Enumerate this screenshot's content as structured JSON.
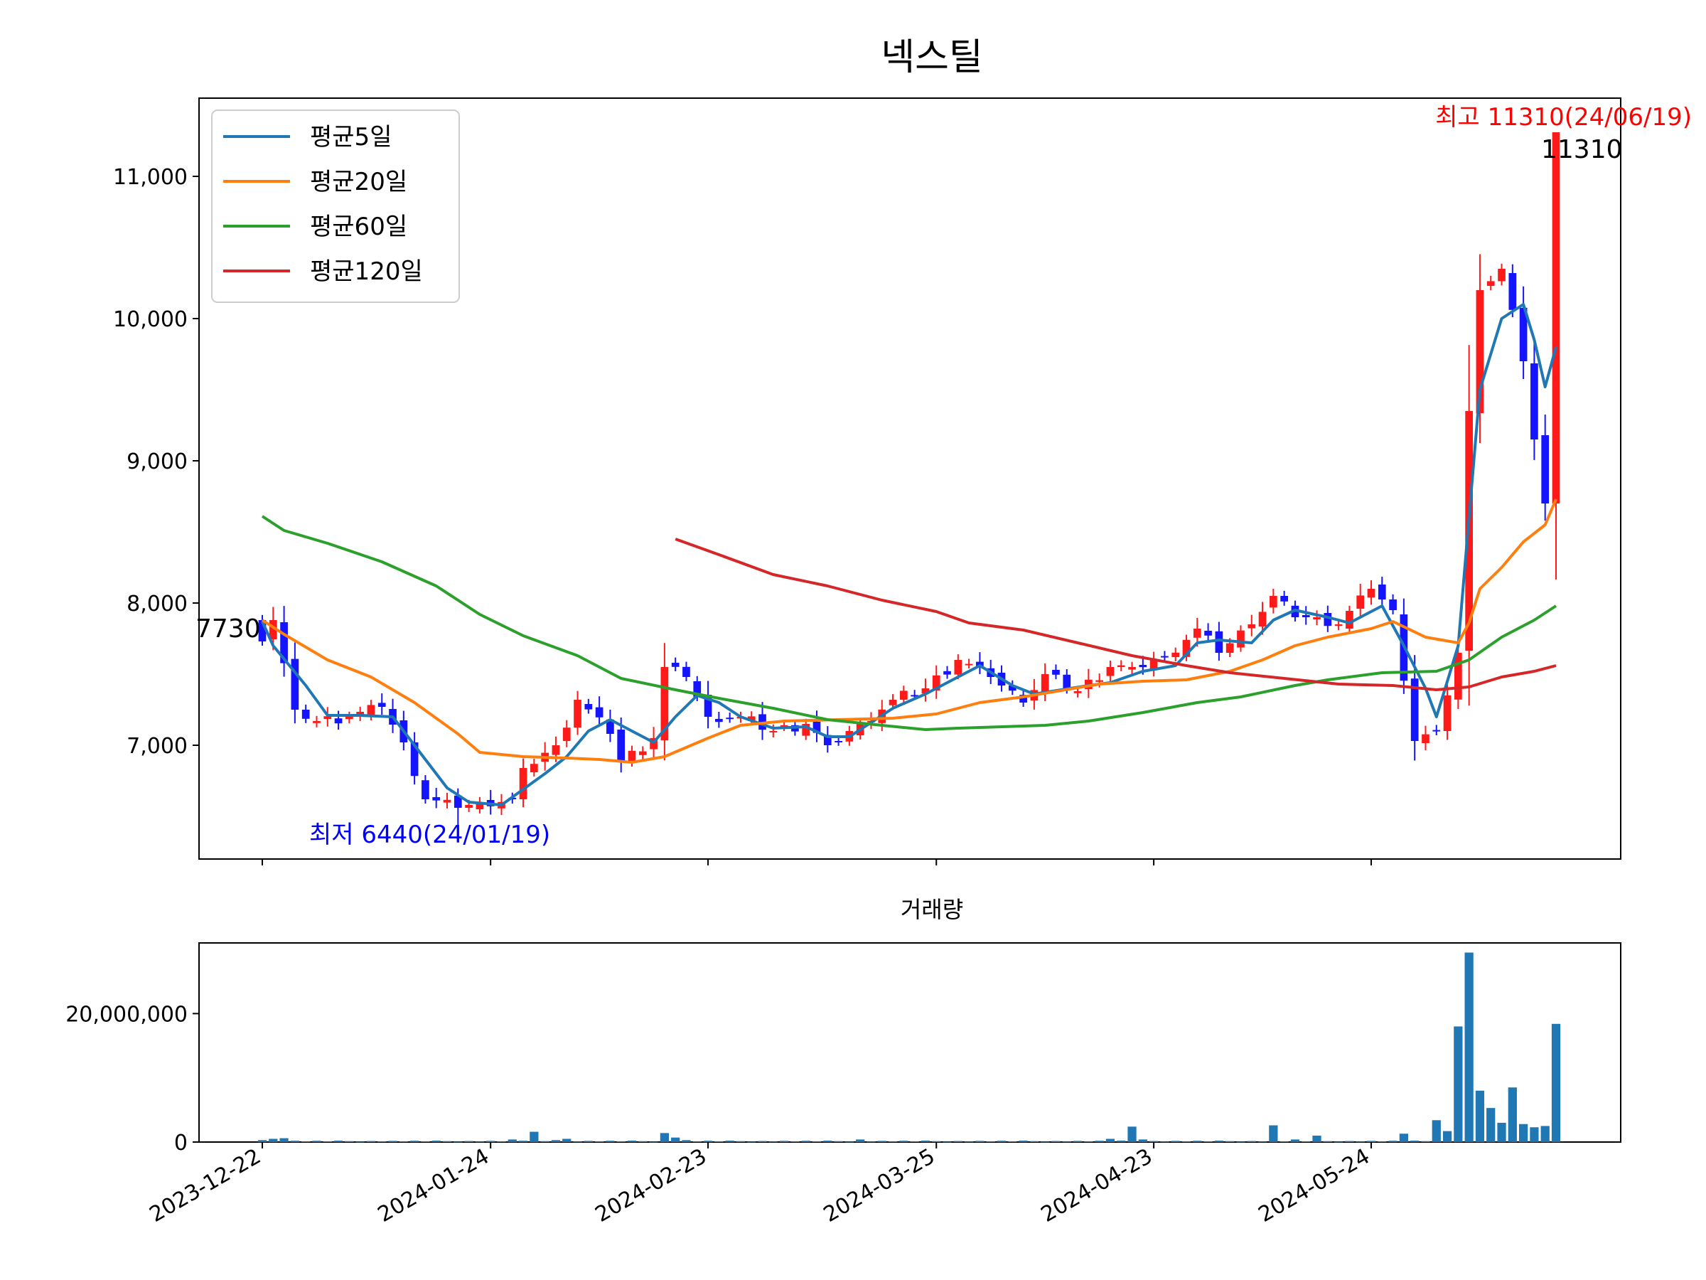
{
  "title": "넥스틸",
  "volume_title": "거래량",
  "legend": [
    "평균5일",
    "평균20일",
    "평균60일",
    "평균120일"
  ],
  "annotations": {
    "high": "최고 11310(24/06/19)",
    "low": "최저 6440(24/01/19)",
    "first_close": "7730",
    "last_close": "11310"
  },
  "colors": {
    "up": "#ff1a1a",
    "down": "#1414ff",
    "ma5": "#1f77b4",
    "ma20": "#ff7f0e",
    "ma60": "#2ca02c",
    "ma120": "#d62728",
    "volume": "#1f77b4",
    "high_text": "#ff0000",
    "low_text": "#0000ff"
  },
  "chart_data": [
    {
      "type": "candlestick",
      "title": "넥스틸",
      "x_ticks": [
        "2023-12-22",
        "2024-01-24",
        "2024-02-23",
        "2024-03-25",
        "2024-04-23",
        "2024-05-24"
      ],
      "ylim": [
        6200,
        11550
      ],
      "y_ticks": [
        7000,
        8000,
        9000,
        10000,
        11000
      ],
      "y_tick_labels": [
        "7,000",
        "8,000",
        "9,000",
        "10,000",
        "11,000"
      ],
      "grid": false,
      "legend_position": "top-left",
      "close_anchors": [
        [
          "2023-12-22",
          7730
        ],
        [
          "2023-12-26",
          7880
        ],
        [
          "2023-12-28",
          7250
        ],
        [
          "2024-01-02",
          7170
        ],
        [
          "2024-01-05",
          7200
        ],
        [
          "2024-01-10",
          7270
        ],
        [
          "2024-01-12",
          7020
        ],
        [
          "2024-01-16",
          6620
        ],
        [
          "2024-01-19",
          6560
        ],
        [
          "2024-01-23",
          6600
        ],
        [
          "2024-01-26",
          6620
        ],
        [
          "2024-01-29",
          6840
        ],
        [
          "2024-02-01",
          7000
        ],
        [
          "2024-02-05",
          7320
        ],
        [
          "2024-02-08",
          7080
        ],
        [
          "2024-02-13",
          6880
        ],
        [
          "2024-02-16",
          7050
        ],
        [
          "2024-02-19",
          7550
        ],
        [
          "2024-02-21",
          7480
        ],
        [
          "2024-02-23",
          7200
        ],
        [
          "2024-02-28",
          7200
        ],
        [
          "2024-03-04",
          7100
        ],
        [
          "2024-03-07",
          7150
        ],
        [
          "2024-03-11",
          7000
        ],
        [
          "2024-03-14",
          7150
        ],
        [
          "2024-03-19",
          7320
        ],
        [
          "2024-03-22",
          7400
        ],
        [
          "2024-03-27",
          7600
        ],
        [
          "2024-04-01",
          7480
        ],
        [
          "2024-04-04",
          7300
        ],
        [
          "2024-04-08",
          7500
        ],
        [
          "2024-04-12",
          7380
        ],
        [
          "2024-04-17",
          7550
        ],
        [
          "2024-04-19",
          7550
        ],
        [
          "2024-04-24",
          7620
        ],
        [
          "2024-04-29",
          7820
        ],
        [
          "2024-05-02",
          7650
        ],
        [
          "2024-05-08",
          7850
        ],
        [
          "2024-05-10",
          8050
        ],
        [
          "2024-05-14",
          7900
        ],
        [
          "2024-05-17",
          7900
        ],
        [
          "2024-05-21",
          7850
        ],
        [
          "2024-05-24",
          8100
        ],
        [
          "2024-05-28",
          7950
        ],
        [
          "2024-05-30",
          7030
        ],
        [
          "2024-06-03",
          7100
        ],
        [
          "2024-06-05",
          7650
        ],
        [
          "2024-06-07",
          9350
        ],
        [
          "2024-06-10",
          10200
        ],
        [
          "2024-06-12",
          10350
        ],
        [
          "2024-06-14",
          9700
        ],
        [
          "2024-06-17",
          9150
        ],
        [
          "2024-06-18",
          8700
        ],
        [
          "2024-06-19",
          11310
        ]
      ],
      "extremes": {
        "high": 11310,
        "high_date": "2024-06-19",
        "low": 6440,
        "low_date": "2024-01-19"
      },
      "first_close": 7730,
      "last_close": 11310,
      "series": [
        {
          "name": "평균5일",
          "points": [
            [
              "2023-12-22",
              7870
            ],
            [
              "2023-12-26",
              7700
            ],
            [
              "2023-12-29",
              7420
            ],
            [
              "2024-01-03",
              7210
            ],
            [
              "2024-01-08",
              7210
            ],
            [
              "2024-01-11",
              7200
            ],
            [
              "2024-01-16",
              6900
            ],
            [
              "2024-01-18",
              6700
            ],
            [
              "2024-01-22",
              6600
            ],
            [
              "2024-01-25",
              6580
            ],
            [
              "2024-01-31",
              6800
            ],
            [
              "2024-02-02",
              6920
            ],
            [
              "2024-02-06",
              7100
            ],
            [
              "2024-02-08",
              7180
            ],
            [
              "2024-02-14",
              7100
            ],
            [
              "2024-02-16",
              7020
            ],
            [
              "2024-02-20",
              7200
            ],
            [
              "2024-02-22",
              7350
            ],
            [
              "2024-02-26",
              7300
            ],
            [
              "2024-02-28",
              7200
            ],
            [
              "2024-03-04",
              7120
            ],
            [
              "2024-03-07",
              7130
            ],
            [
              "2024-03-11",
              7060
            ],
            [
              "2024-03-13",
              7060
            ],
            [
              "2024-03-19",
              7260
            ],
            [
              "2024-03-22",
              7360
            ],
            [
              "2024-03-27",
              7480
            ],
            [
              "2024-03-29",
              7560
            ],
            [
              "2024-04-03",
              7420
            ],
            [
              "2024-04-05",
              7360
            ],
            [
              "2024-04-10",
              7430
            ],
            [
              "2024-04-15",
              7420
            ],
            [
              "2024-04-17",
              7440
            ],
            [
              "2024-04-22",
              7520
            ],
            [
              "2024-04-25",
              7560
            ],
            [
              "2024-04-29",
              7720
            ],
            [
              "2024-05-02",
              7740
            ],
            [
              "2024-05-08",
              7720
            ],
            [
              "2024-05-10",
              7880
            ],
            [
              "2024-05-14",
              7950
            ],
            [
              "2024-05-20",
              7900
            ],
            [
              "2024-05-22",
              7860
            ],
            [
              "2024-05-27",
              7980
            ],
            [
              "2024-05-29",
              7700
            ],
            [
              "2024-05-31",
              7400
            ],
            [
              "2024-06-03",
              7200
            ],
            [
              "2024-06-05",
              7700
            ],
            [
              "2024-06-07",
              8600
            ],
            [
              "2024-06-10",
              9500
            ],
            [
              "2024-06-12",
              10000
            ],
            [
              "2024-06-14",
              10100
            ],
            [
              "2024-06-17",
              9850
            ],
            [
              "2024-06-18",
              9520
            ],
            [
              "2024-06-19",
              9800
            ]
          ]
        },
        {
          "name": "평균20일",
          "points": [
            [
              "2023-12-22",
              7880
            ],
            [
              "2023-12-27",
              7780
            ],
            [
              "2024-01-03",
              7600
            ],
            [
              "2024-01-09",
              7480
            ],
            [
              "2024-01-15",
              7300
            ],
            [
              "2024-01-19",
              7080
            ],
            [
              "2024-01-23",
              6950
            ],
            [
              "2024-01-29",
              6920
            ],
            [
              "2024-02-02",
              6910
            ],
            [
              "2024-02-07",
              6900
            ],
            [
              "2024-02-14",
              6880
            ],
            [
              "2024-02-19",
              6920
            ],
            [
              "2024-02-23",
              7050
            ],
            [
              "2024-02-28",
              7140
            ],
            [
              "2024-03-05",
              7170
            ],
            [
              "2024-03-12",
              7180
            ],
            [
              "2024-03-19",
              7190
            ],
            [
              "2024-03-25",
              7220
            ],
            [
              "2024-03-29",
              7300
            ],
            [
              "2024-04-04",
              7340
            ],
            [
              "2024-04-10",
              7390
            ],
            [
              "2024-04-16",
              7430
            ],
            [
              "2024-04-22",
              7450
            ],
            [
              "2024-04-26",
              7460
            ],
            [
              "2024-05-03",
              7520
            ],
            [
              "2024-05-09",
              7600
            ],
            [
              "2024-05-14",
              7700
            ],
            [
              "2024-05-20",
              7760
            ],
            [
              "2024-05-24",
              7820
            ],
            [
              "2024-05-28",
              7870
            ],
            [
              "2024-05-31",
              7760
            ],
            [
              "2024-06-05",
              7720
            ],
            [
              "2024-06-07",
              7860
            ],
            [
              "2024-06-10",
              8100
            ],
            [
              "2024-06-12",
              8250
            ],
            [
              "2024-06-14",
              8430
            ],
            [
              "2024-06-18",
              8550
            ],
            [
              "2024-06-19",
              8730
            ]
          ]
        },
        {
          "name": "평균60일",
          "points": [
            [
              "2023-12-22",
              8610
            ],
            [
              "2023-12-27",
              8510
            ],
            [
              "2024-01-03",
              8420
            ],
            [
              "2024-01-10",
              8290
            ],
            [
              "2024-01-17",
              8120
            ],
            [
              "2024-01-23",
              7920
            ],
            [
              "2024-01-29",
              7770
            ],
            [
              "2024-02-05",
              7630
            ],
            [
              "2024-02-13",
              7470
            ],
            [
              "2024-02-20",
              7390
            ],
            [
              "2024-02-26",
              7330
            ],
            [
              "2024-03-04",
              7260
            ],
            [
              "2024-03-11",
              7180
            ],
            [
              "2024-03-18",
              7140
            ],
            [
              "2024-03-22",
              7110
            ],
            [
              "2024-03-27",
              7120
            ],
            [
              "2024-04-02",
              7130
            ],
            [
              "2024-04-08",
              7140
            ],
            [
              "2024-04-15",
              7170
            ],
            [
              "2024-04-22",
              7230
            ],
            [
              "2024-04-29",
              7300
            ],
            [
              "2024-05-07",
              7340
            ],
            [
              "2024-05-14",
              7420
            ],
            [
              "2024-05-20",
              7460
            ],
            [
              "2024-05-27",
              7510
            ],
            [
              "2024-06-03",
              7520
            ],
            [
              "2024-06-07",
              7600
            ],
            [
              "2024-06-12",
              7760
            ],
            [
              "2024-06-17",
              7880
            ],
            [
              "2024-06-19",
              7980
            ]
          ]
        },
        {
          "name": "평균120일",
          "points": [
            [
              "2024-02-20",
              8450
            ],
            [
              "2024-02-26",
              8340
            ],
            [
              "2024-03-04",
              8200
            ],
            [
              "2024-03-11",
              8120
            ],
            [
              "2024-03-18",
              8020
            ],
            [
              "2024-03-25",
              7940
            ],
            [
              "2024-03-28",
              7860
            ],
            [
              "2024-04-04",
              7810
            ],
            [
              "2024-04-12",
              7720
            ],
            [
              "2024-04-19",
              7630
            ],
            [
              "2024-04-26",
              7560
            ],
            [
              "2024-05-03",
              7510
            ],
            [
              "2024-05-13",
              7470
            ],
            [
              "2024-05-21",
              7430
            ],
            [
              "2024-05-28",
              7420
            ],
            [
              "2024-06-03",
              7390
            ],
            [
              "2024-06-07",
              7410
            ],
            [
              "2024-06-12",
              7480
            ],
            [
              "2024-06-17",
              7520
            ],
            [
              "2024-06-19",
              7560
            ]
          ]
        }
      ]
    },
    {
      "type": "bar",
      "title": "거래량",
      "ylim": [
        0,
        31000000
      ],
      "y_ticks": [
        0,
        20000000
      ],
      "y_tick_labels": [
        "0",
        "20,000,000"
      ],
      "x_ticks": [
        "2023-12-22",
        "2024-01-24",
        "2024-02-23",
        "2024-03-25",
        "2024-04-23",
        "2024-05-24"
      ],
      "values": [
        [
          "2023-12-22",
          300000
        ],
        [
          "2023-12-26",
          500000
        ],
        [
          "2023-12-27",
          600000
        ],
        [
          "2023-12-28",
          200000
        ],
        [
          "2024-01-10",
          100000
        ],
        [
          "2024-01-26",
          400000
        ],
        [
          "2024-01-29",
          200000
        ],
        [
          "2024-01-30",
          1600000
        ],
        [
          "2024-02-01",
          300000
        ],
        [
          "2024-02-02",
          500000
        ],
        [
          "2024-02-19",
          1400000
        ],
        [
          "2024-02-20",
          700000
        ],
        [
          "2024-02-21",
          300000
        ],
        [
          "2024-03-14",
          400000
        ],
        [
          "2024-04-17",
          500000
        ],
        [
          "2024-04-19",
          2400000
        ],
        [
          "2024-04-22",
          400000
        ],
        [
          "2024-05-10",
          2600000
        ],
        [
          "2024-05-14",
          400000
        ],
        [
          "2024-05-17",
          1000000
        ],
        [
          "2024-05-29",
          1300000
        ],
        [
          "2024-06-03",
          3400000
        ],
        [
          "2024-06-04",
          1700000
        ],
        [
          "2024-06-05",
          18000000
        ],
        [
          "2024-06-07",
          29500000
        ],
        [
          "2024-06-10",
          8000000
        ],
        [
          "2024-06-11",
          5300000
        ],
        [
          "2024-06-12",
          3000000
        ],
        [
          "2024-06-13",
          8500000
        ],
        [
          "2024-06-14",
          2800000
        ],
        [
          "2024-06-17",
          2300000
        ],
        [
          "2024-06-18",
          2500000
        ],
        [
          "2024-06-19",
          18400000
        ]
      ]
    }
  ]
}
